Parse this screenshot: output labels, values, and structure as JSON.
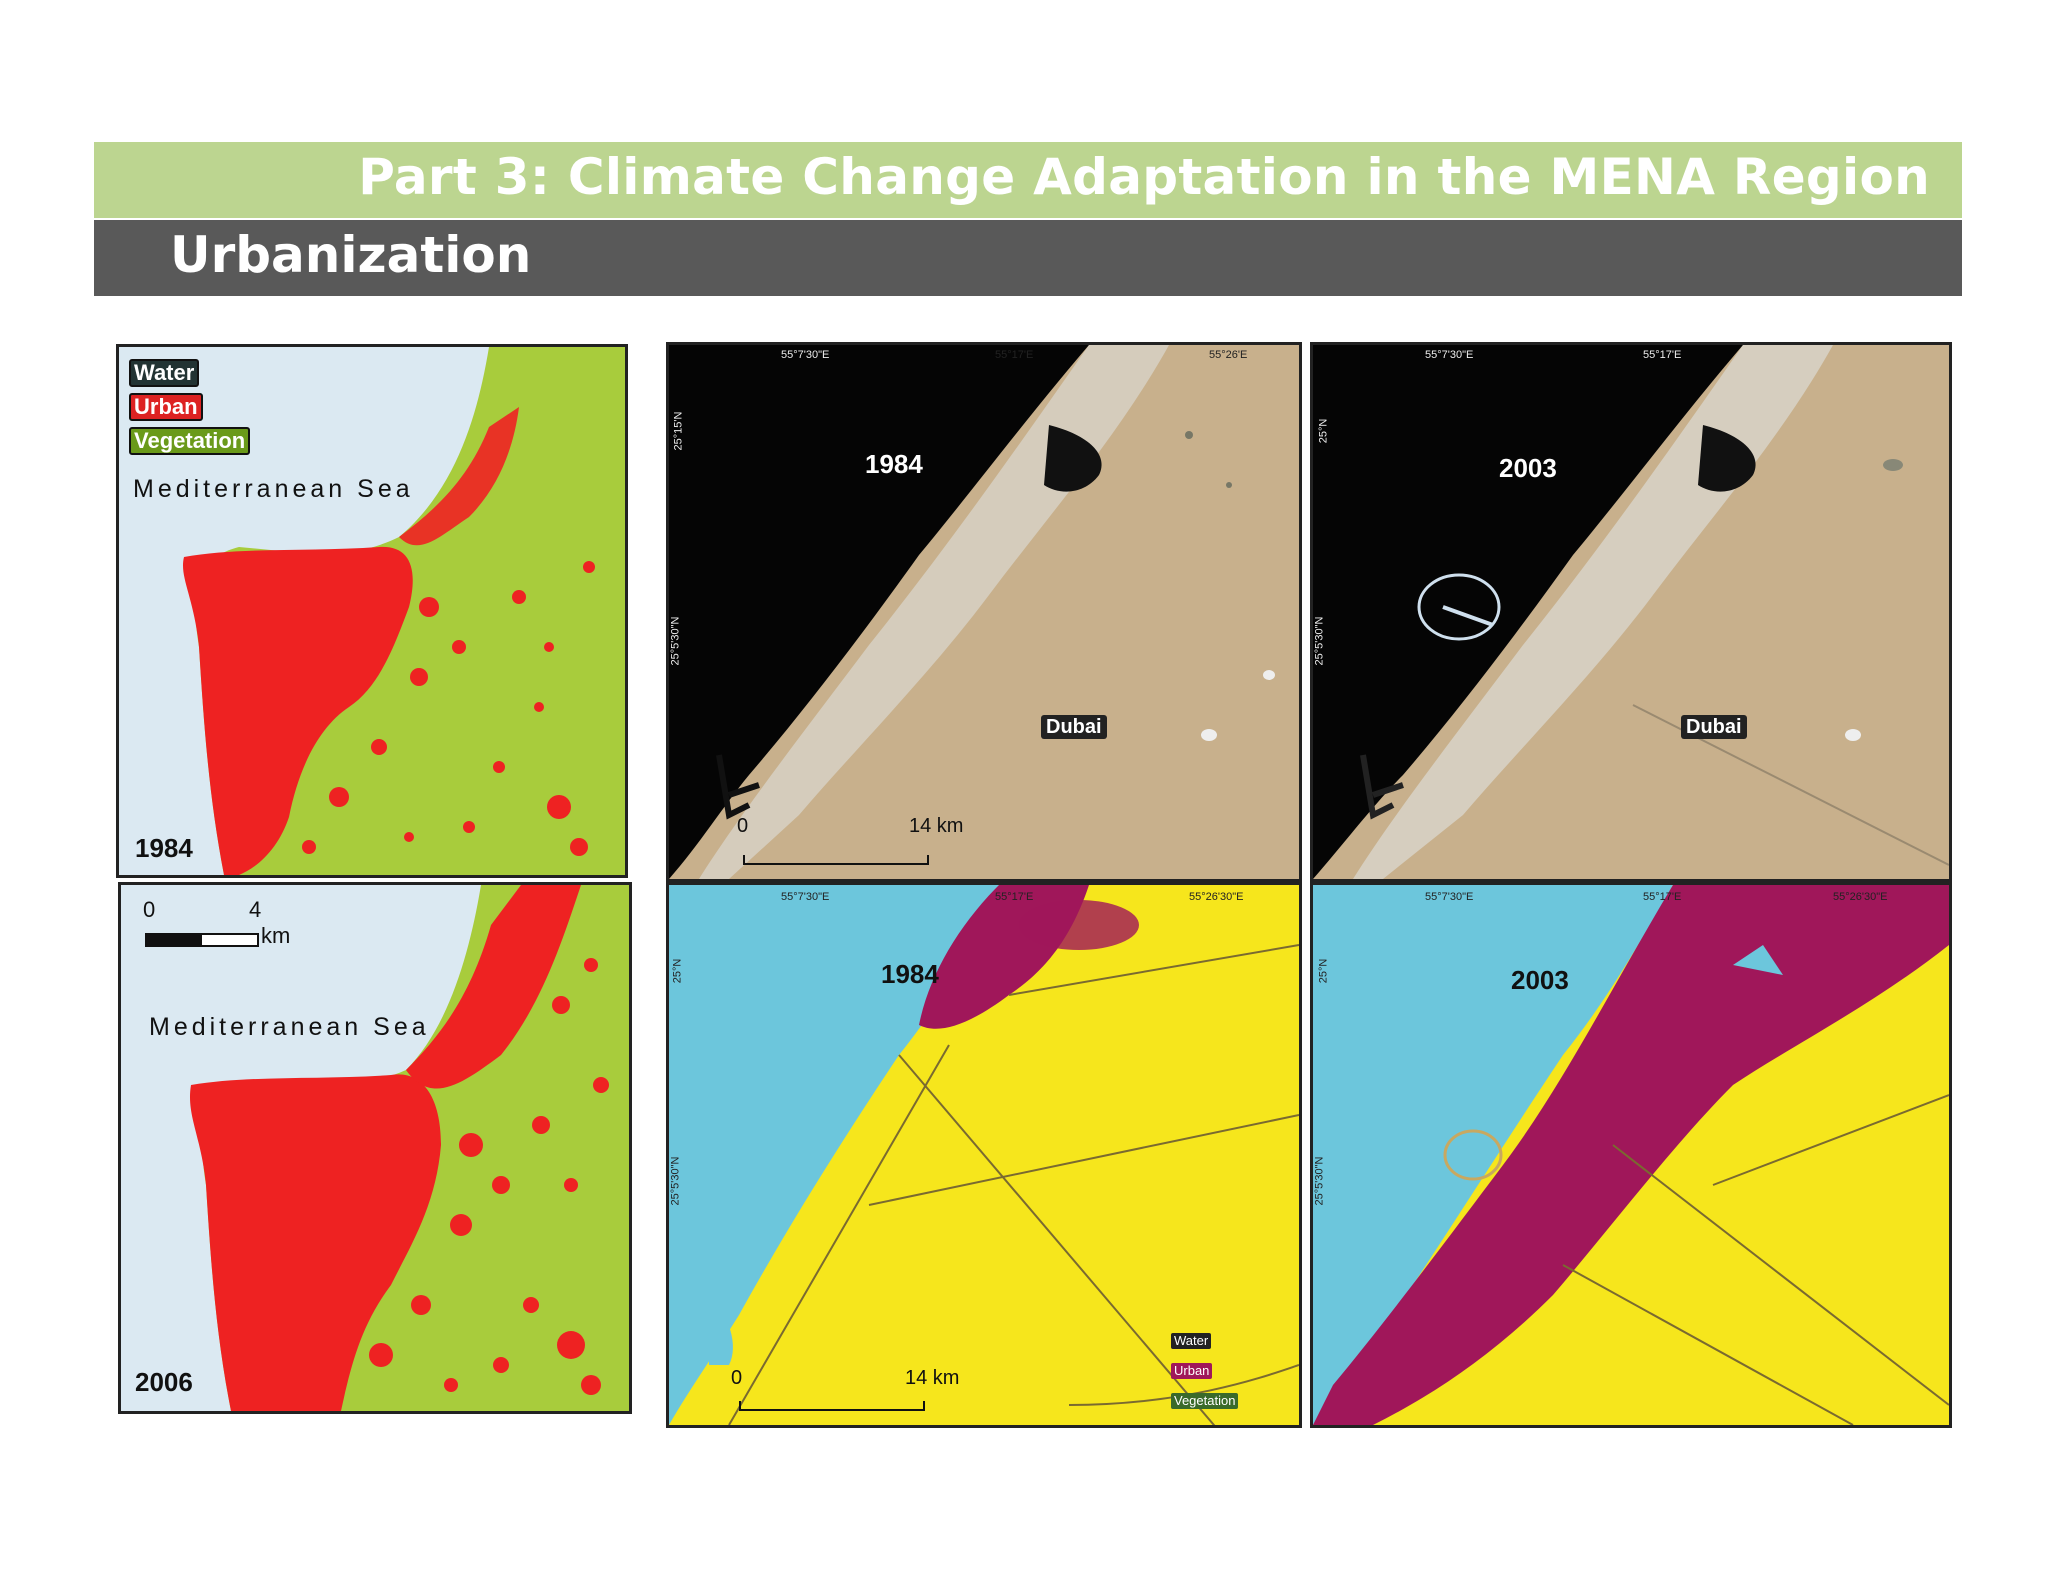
{
  "header": {
    "part_title": "Part 3: Climate Change Adaptation in the MENA Region",
    "section_title": "Urbanization"
  },
  "colors": {
    "band_green": "#bcd590",
    "band_dark": "#595959",
    "water": "#dbe9f2",
    "urban": "#ee2222",
    "vegetation": "#a8cc3c",
    "sea_blue": "#6cc6dc",
    "desert_yellow": "#f6e61c",
    "urban_magenta": "#a0175a",
    "desert_sand": "#c8b08c",
    "night_sea": "#050505"
  },
  "maps": {
    "left_1984": {
      "legend": [
        "Water",
        "Urban",
        "Vegetation"
      ],
      "sea_label": "Mediterranean Sea",
      "year": "1984"
    },
    "left_2006": {
      "scale_start": "0",
      "scale_end": "4",
      "scale_unit": "km",
      "sea_label": "Mediterranean Sea",
      "year": "2006"
    },
    "dubai_sat_1984": {
      "year": "1984",
      "place": "Dubai",
      "coord_top_1": "55°7'30\"E",
      "coord_top_2": "55°17'E",
      "coord_top_3": "55°26'E",
      "coord_left_1": "25°15'N",
      "coord_left_2": "25°5'30\"N",
      "scale_start": "0",
      "scale_end": "14 km"
    },
    "dubai_sat_2003": {
      "year": "2003",
      "place": "Dubai",
      "coord_top_1": "55°7'30\"E",
      "coord_top_2": "55°17'E",
      "coord_left_1": "25°N",
      "coord_left_2": "25°5'30\"N"
    },
    "dubai_class_1984": {
      "year": "1984",
      "coord_top_1": "55°7'30\"E",
      "coord_top_2": "55°17'E",
      "coord_top_3": "55°26'30\"E",
      "coord_left_1": "25°N",
      "coord_left_2": "25°5'30\"N",
      "scale_start": "0",
      "scale_end": "14 km",
      "legend": [
        "Water",
        "Urban",
        "Vegetation"
      ]
    },
    "dubai_class_2003": {
      "year": "2003",
      "coord_top_1": "55°7'30\"E",
      "coord_top_2": "55°17'E",
      "coord_top_3": "55°26'30\"E",
      "coord_left_1": "25°N",
      "coord_left_2": "25°5'30\"N"
    }
  }
}
